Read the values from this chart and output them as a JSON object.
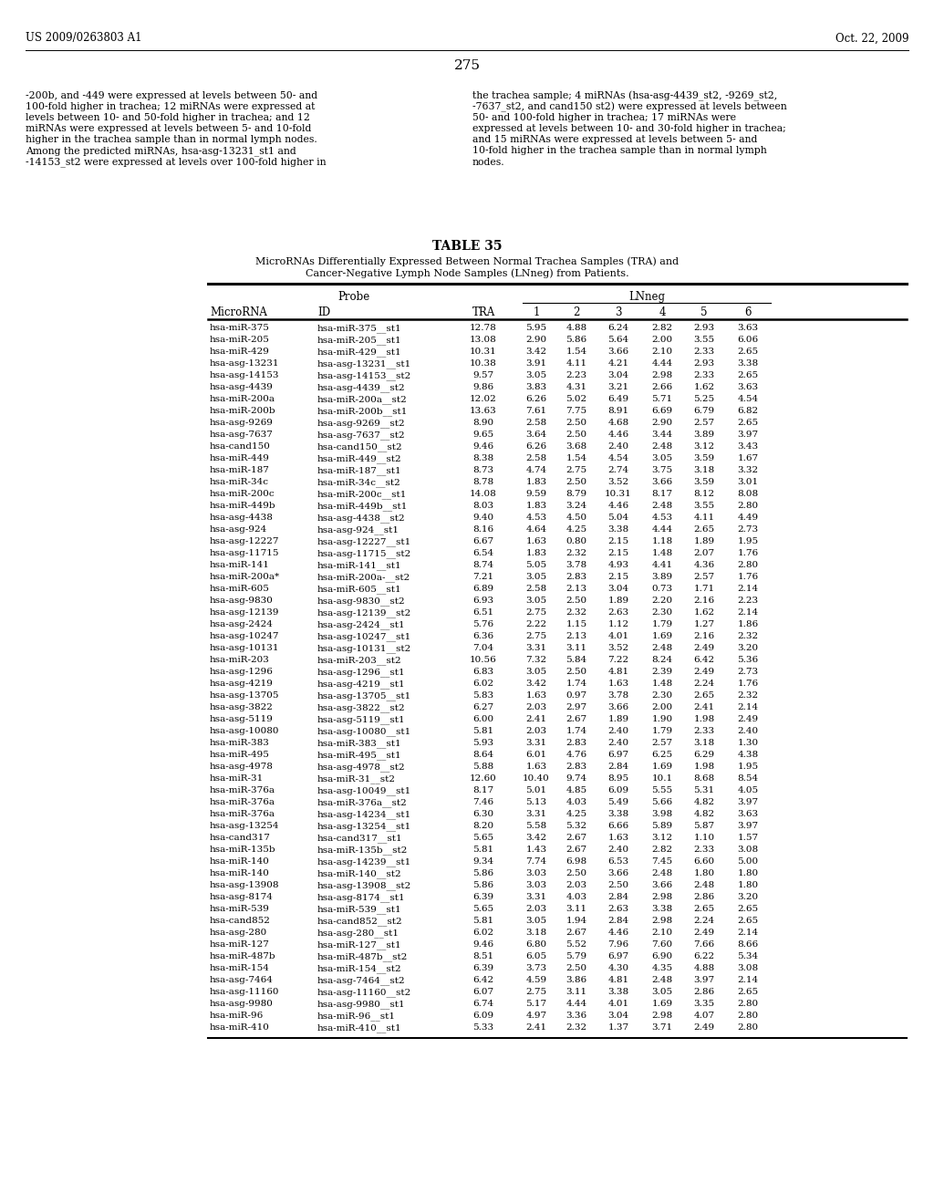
{
  "page_header_left": "US 2009/0263803 A1",
  "page_header_right": "Oct. 22, 2009",
  "page_number": "275",
  "paragraph_left": "-200b, and -449 were expressed at levels between 50- and\n100-fold higher in trachea; 12 miRNAs were expressed at\nlevels between 10- and 50-fold higher in trachea; and 12\nmiRNAs were expressed at levels between 5- and 10-fold\nhigher in the trachea sample than in normal lymph nodes.\nAmong the predicted miRNAs, hsa-asg-13231_st1 and\n-14153_st2 were expressed at levels over 100-fold higher in",
  "paragraph_right": "the trachea sample; 4 miRNAs (hsa-asg-4439_st2, -9269_st2,\n-7637_st2, and cand150 st2) were expressed at levels between\n50- and 100-fold higher in trachea; 17 miRNAs were\nexpressed at levels between 10- and 30-fold higher in trachea;\nand 15 miRNAs were expressed at levels between 5- and\n10-fold higher in the trachea sample than in normal lymph\nnodes.",
  "table_title": "TABLE 35",
  "table_subtitle": "MicroRNAs Differentially Expressed Between Normal Trachea Samples (TRA) and\nCancer-Negative Lymph Node Samples (LNneg) from Patients.",
  "sub_headers": [
    "MicroRNA",
    "ID",
    "TRA",
    "1",
    "2",
    "3",
    "4",
    "5",
    "6"
  ],
  "rows": [
    [
      "hsa-miR-375",
      "hsa-miR-375__st1",
      "12.78",
      "5.95",
      "4.88",
      "6.24",
      "2.82",
      "2.93",
      "3.63"
    ],
    [
      "hsa-miR-205",
      "hsa-miR-205__st1",
      "13.08",
      "2.90",
      "5.86",
      "5.64",
      "2.00",
      "3.55",
      "6.06"
    ],
    [
      "hsa-miR-429",
      "hsa-miR-429__st1",
      "10.31",
      "3.42",
      "1.54",
      "3.66",
      "2.10",
      "2.33",
      "2.65"
    ],
    [
      "hsa-asg-13231",
      "hsa-asg-13231__st1",
      "10.38",
      "3.91",
      "4.11",
      "4.21",
      "4.44",
      "2.93",
      "3.38"
    ],
    [
      "hsa-asg-14153",
      "hsa-asg-14153__st2",
      "9.57",
      "3.05",
      "2.23",
      "3.04",
      "2.98",
      "2.33",
      "2.65"
    ],
    [
      "hsa-asg-4439",
      "hsa-asg-4439__st2",
      "9.86",
      "3.83",
      "4.31",
      "3.21",
      "2.66",
      "1.62",
      "3.63"
    ],
    [
      "hsa-miR-200a",
      "hsa-miR-200a__st2",
      "12.02",
      "6.26",
      "5.02",
      "6.49",
      "5.71",
      "5.25",
      "4.54"
    ],
    [
      "hsa-miR-200b",
      "hsa-miR-200b__st1",
      "13.63",
      "7.61",
      "7.75",
      "8.91",
      "6.69",
      "6.79",
      "6.82"
    ],
    [
      "hsa-asg-9269",
      "hsa-asg-9269__st2",
      "8.90",
      "2.58",
      "2.50",
      "4.68",
      "2.90",
      "2.57",
      "2.65"
    ],
    [
      "hsa-asg-7637",
      "hsa-asg-7637__st2",
      "9.65",
      "3.64",
      "2.50",
      "4.46",
      "3.44",
      "3.89",
      "3.97"
    ],
    [
      "hsa-cand150",
      "hsa-cand150__st2",
      "9.46",
      "6.26",
      "3.68",
      "2.40",
      "2.48",
      "3.12",
      "3.43"
    ],
    [
      "hsa-miR-449",
      "hsa-miR-449__st2",
      "8.38",
      "2.58",
      "1.54",
      "4.54",
      "3.05",
      "3.59",
      "1.67"
    ],
    [
      "hsa-miR-187",
      "hsa-miR-187__st1",
      "8.73",
      "4.74",
      "2.75",
      "2.74",
      "3.75",
      "3.18",
      "3.32"
    ],
    [
      "hsa-miR-34c",
      "hsa-miR-34c__st2",
      "8.78",
      "1.83",
      "2.50",
      "3.52",
      "3.66",
      "3.59",
      "3.01"
    ],
    [
      "hsa-miR-200c",
      "hsa-miR-200c__st1",
      "14.08",
      "9.59",
      "8.79",
      "10.31",
      "8.17",
      "8.12",
      "8.08"
    ],
    [
      "hsa-miR-449b",
      "hsa-miR-449b__st1",
      "8.03",
      "1.83",
      "3.24",
      "4.46",
      "2.48",
      "3.55",
      "2.80"
    ],
    [
      "hsa-asg-4438",
      "hsa-asg-4438__st2",
      "9.40",
      "4.53",
      "4.50",
      "5.04",
      "4.53",
      "4.11",
      "4.49"
    ],
    [
      "hsa-asg-924",
      "hsa-asg-924__st1",
      "8.16",
      "4.64",
      "4.25",
      "3.38",
      "4.44",
      "2.65",
      "2.73"
    ],
    [
      "hsa-asg-12227",
      "hsa-asg-12227__st1",
      "6.67",
      "1.63",
      "0.80",
      "2.15",
      "1.18",
      "1.89",
      "1.95"
    ],
    [
      "hsa-asg-11715",
      "hsa-asg-11715__st2",
      "6.54",
      "1.83",
      "2.32",
      "2.15",
      "1.48",
      "2.07",
      "1.76"
    ],
    [
      "hsa-miR-141",
      "hsa-miR-141__st1",
      "8.74",
      "5.05",
      "3.78",
      "4.93",
      "4.41",
      "4.36",
      "2.80"
    ],
    [
      "hsa-miR-200a*",
      "hsa-miR-200a-__st2",
      "7.21",
      "3.05",
      "2.83",
      "2.15",
      "3.89",
      "2.57",
      "1.76"
    ],
    [
      "hsa-miR-605",
      "hsa-miR-605__st1",
      "6.89",
      "2.58",
      "2.13",
      "3.04",
      "0.73",
      "1.71",
      "2.14"
    ],
    [
      "hsa-asg-9830",
      "hsa-asg-9830__st2",
      "6.93",
      "3.05",
      "2.50",
      "1.89",
      "2.20",
      "2.16",
      "2.23"
    ],
    [
      "hsa-asg-12139",
      "hsa-asg-12139__st2",
      "6.51",
      "2.75",
      "2.32",
      "2.63",
      "2.30",
      "1.62",
      "2.14"
    ],
    [
      "hsa-asg-2424",
      "hsa-asg-2424__st1",
      "5.76",
      "2.22",
      "1.15",
      "1.12",
      "1.79",
      "1.27",
      "1.86"
    ],
    [
      "hsa-asg-10247",
      "hsa-asg-10247__st1",
      "6.36",
      "2.75",
      "2.13",
      "4.01",
      "1.69",
      "2.16",
      "2.32"
    ],
    [
      "hsa-asg-10131",
      "hsa-asg-10131__st2",
      "7.04",
      "3.31",
      "3.11",
      "3.52",
      "2.48",
      "2.49",
      "3.20"
    ],
    [
      "hsa-miR-203",
      "hsa-miR-203__st2",
      "10.56",
      "7.32",
      "5.84",
      "7.22",
      "8.24",
      "6.42",
      "5.36"
    ],
    [
      "hsa-asg-1296",
      "hsa-asg-1296__st1",
      "6.83",
      "3.05",
      "2.50",
      "4.81",
      "2.39",
      "2.49",
      "2.73"
    ],
    [
      "hsa-asg-4219",
      "hsa-asg-4219__st1",
      "6.02",
      "3.42",
      "1.74",
      "1.63",
      "1.48",
      "2.24",
      "1.76"
    ],
    [
      "hsa-asg-13705",
      "hsa-asg-13705__st1",
      "5.83",
      "1.63",
      "0.97",
      "3.78",
      "2.30",
      "2.65",
      "2.32"
    ],
    [
      "hsa-asg-3822",
      "hsa-asg-3822__st2",
      "6.27",
      "2.03",
      "2.97",
      "3.66",
      "2.00",
      "2.41",
      "2.14"
    ],
    [
      "hsa-asg-5119",
      "hsa-asg-5119__st1",
      "6.00",
      "2.41",
      "2.67",
      "1.89",
      "1.90",
      "1.98",
      "2.49"
    ],
    [
      "hsa-asg-10080",
      "hsa-asg-10080__st1",
      "5.81",
      "2.03",
      "1.74",
      "2.40",
      "1.79",
      "2.33",
      "2.40"
    ],
    [
      "hsa-miR-383",
      "hsa-miR-383__st1",
      "5.93",
      "3.31",
      "2.83",
      "2.40",
      "2.57",
      "3.18",
      "1.30"
    ],
    [
      "hsa-miR-495",
      "hsa-miR-495__st1",
      "8.64",
      "6.01",
      "4.76",
      "6.97",
      "6.25",
      "6.29",
      "4.38"
    ],
    [
      "hsa-asg-4978",
      "hsa-asg-4978__st2",
      "5.88",
      "1.63",
      "2.83",
      "2.84",
      "1.69",
      "1.98",
      "1.95"
    ],
    [
      "hsa-miR-31",
      "hsa-miR-31__st2",
      "12.60",
      "10.40",
      "9.74",
      "8.95",
      "10.1",
      "8.68",
      "8.54"
    ],
    [
      "hsa-miR-376a",
      "hsa-asg-10049__st1",
      "8.17",
      "5.01",
      "4.85",
      "6.09",
      "5.55",
      "5.31",
      "4.05"
    ],
    [
      "hsa-miR-376a",
      "hsa-miR-376a__st2",
      "7.46",
      "5.13",
      "4.03",
      "5.49",
      "5.66",
      "4.82",
      "3.97"
    ],
    [
      "hsa-miR-376a",
      "hsa-asg-14234__st1",
      "6.30",
      "3.31",
      "4.25",
      "3.38",
      "3.98",
      "4.82",
      "3.63"
    ],
    [
      "hsa-asg-13254",
      "hsa-asg-13254__st1",
      "8.20",
      "5.58",
      "5.32",
      "6.66",
      "5.89",
      "5.87",
      "3.97"
    ],
    [
      "hsa-cand317",
      "hsa-cand317__st1",
      "5.65",
      "3.42",
      "2.67",
      "1.63",
      "3.12",
      "1.10",
      "1.57"
    ],
    [
      "hsa-miR-135b",
      "hsa-miR-135b__st2",
      "5.81",
      "1.43",
      "2.67",
      "2.40",
      "2.82",
      "2.33",
      "3.08"
    ],
    [
      "hsa-miR-140",
      "hsa-asg-14239__st1",
      "9.34",
      "7.74",
      "6.98",
      "6.53",
      "7.45",
      "6.60",
      "5.00"
    ],
    [
      "hsa-miR-140",
      "hsa-miR-140__st2",
      "5.86",
      "3.03",
      "2.50",
      "3.66",
      "2.48",
      "1.80",
      "1.80"
    ],
    [
      "hsa-asg-13908",
      "hsa-asg-13908__st2",
      "5.86",
      "3.03",
      "2.03",
      "2.50",
      "3.66",
      "2.48",
      "1.80"
    ],
    [
      "hsa-asg-8174",
      "hsa-asg-8174__st1",
      "6.39",
      "3.31",
      "4.03",
      "2.84",
      "2.98",
      "2.86",
      "3.20"
    ],
    [
      "hsa-miR-539",
      "hsa-miR-539__st1",
      "5.65",
      "2.03",
      "3.11",
      "2.63",
      "3.38",
      "2.65",
      "2.65"
    ],
    [
      "hsa-cand852",
      "hsa-cand852__st2",
      "5.81",
      "3.05",
      "1.94",
      "2.84",
      "2.98",
      "2.24",
      "2.65"
    ],
    [
      "hsa-asg-280",
      "hsa-asg-280__st1",
      "6.02",
      "3.18",
      "2.67",
      "4.46",
      "2.10",
      "2.49",
      "2.14"
    ],
    [
      "hsa-miR-127",
      "hsa-miR-127__st1",
      "9.46",
      "6.80",
      "5.52",
      "7.96",
      "7.60",
      "7.66",
      "8.66"
    ],
    [
      "hsa-miR-487b",
      "hsa-miR-487b__st2",
      "8.51",
      "6.05",
      "5.79",
      "6.97",
      "6.90",
      "6.22",
      "5.34"
    ],
    [
      "hsa-miR-154",
      "hsa-miR-154__st2",
      "6.39",
      "3.73",
      "2.50",
      "4.30",
      "4.35",
      "4.88",
      "3.08"
    ],
    [
      "hsa-asg-7464",
      "hsa-asg-7464__st2",
      "6.42",
      "4.59",
      "3.86",
      "4.81",
      "2.48",
      "3.97",
      "2.14"
    ],
    [
      "hsa-asg-11160",
      "hsa-asg-11160__st2",
      "6.07",
      "2.75",
      "3.11",
      "3.38",
      "3.05",
      "2.86",
      "2.65"
    ],
    [
      "hsa-asg-9980",
      "hsa-asg-9980__st1",
      "6.74",
      "5.17",
      "4.44",
      "4.01",
      "1.69",
      "3.35",
      "2.80"
    ],
    [
      "hsa-miR-96",
      "hsa-miR-96__st1",
      "6.09",
      "4.97",
      "3.36",
      "3.04",
      "2.98",
      "4.07",
      "2.80"
    ],
    [
      "hsa-miR-410",
      "hsa-miR-410__st1",
      "5.33",
      "2.41",
      "2.32",
      "1.37",
      "3.71",
      "2.49",
      "2.80"
    ]
  ]
}
